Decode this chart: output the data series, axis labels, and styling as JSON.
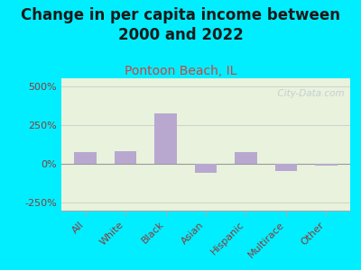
{
  "title": "Change in per capita income between\n2000 and 2022",
  "subtitle": "Pontoon Beach, IL",
  "categories": [
    "All",
    "White",
    "Black",
    "Asian",
    "Hispanic",
    "Multirace",
    "Other"
  ],
  "values": [
    75,
    80,
    325,
    -60,
    75,
    -45,
    -10
  ],
  "bar_color": "#b8a8d0",
  "title_fontsize": 12,
  "subtitle_fontsize": 10,
  "subtitle_color": "#cc4444",
  "tick_label_color": "#8b3a3a",
  "background_outer": "#00eeff",
  "background_chart_top": "#e8f2dc",
  "background_chart_bottom": "#f5f8ee",
  "ylim": [
    -300,
    550
  ],
  "yticks": [
    -250,
    0,
    250,
    500
  ],
  "ytick_labels": [
    "-250%",
    "0%",
    "250%",
    "500%"
  ],
  "watermark": "  City-Data.com"
}
